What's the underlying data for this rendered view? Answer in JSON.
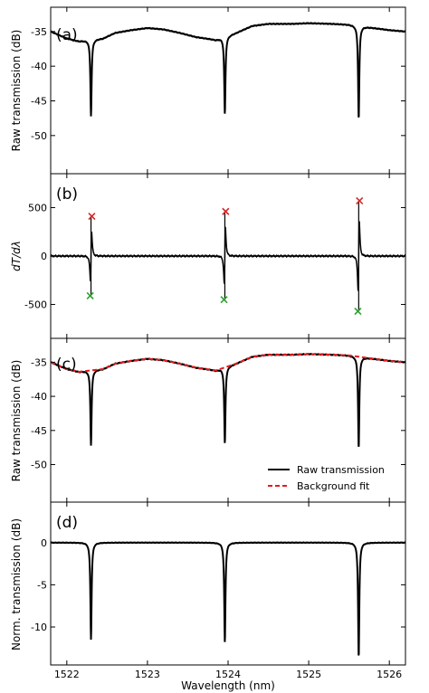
{
  "chart_data": [
    {
      "type": "line",
      "panel_label": "(a)",
      "ylabel": "Raw transmission (dB)",
      "xlim": [
        1521.8,
        1526.2
      ],
      "ylim": [
        -55.5,
        -31.5
      ],
      "yticks": [
        -50,
        -45,
        -40,
        -35
      ],
      "grid": false,
      "legend": "none",
      "series": [
        {
          "color": "#000000",
          "style": "solid",
          "background": [
            [
              1521.8,
              -35.0
            ],
            [
              1522.0,
              -36.0
            ],
            [
              1522.15,
              -36.4
            ],
            [
              1522.45,
              -36.0
            ],
            [
              1522.6,
              -35.2
            ],
            [
              1522.8,
              -34.8
            ],
            [
              1523.0,
              -34.5
            ],
            [
              1523.2,
              -34.7
            ],
            [
              1523.4,
              -35.2
            ],
            [
              1523.6,
              -35.8
            ],
            [
              1523.85,
              -36.2
            ],
            [
              1524.1,
              -35.2
            ],
            [
              1524.3,
              -34.2
            ],
            [
              1524.5,
              -33.9
            ],
            [
              1524.8,
              -33.9
            ],
            [
              1525.0,
              -33.8
            ],
            [
              1525.3,
              -33.9
            ],
            [
              1525.5,
              -34.0
            ],
            [
              1525.75,
              -34.4
            ],
            [
              1526.0,
              -34.8
            ],
            [
              1526.2,
              -35.0
            ]
          ],
          "dips": [
            {
              "x": 1522.3,
              "depth": 11.0,
              "width": 0.009
            },
            {
              "x": 1523.96,
              "depth": 11.2,
              "width": 0.009
            },
            {
              "x": 1525.62,
              "depth": 13.5,
              "width": 0.009
            }
          ]
        }
      ]
    },
    {
      "type": "line",
      "panel_label": "(b)",
      "ylabel": "dT/dλ",
      "xlim": [
        1521.8,
        1526.2
      ],
      "ylim": [
        -850,
        850
      ],
      "yticks": [
        -500,
        0,
        500
      ],
      "grid": false,
      "legend": "none",
      "series": [
        {
          "color": "#000000",
          "style": "solid",
          "resonances": [
            {
              "x": 1522.3,
              "max": 410,
              "min": -410
            },
            {
              "x": 1523.96,
              "max": 460,
              "min": -450
            },
            {
              "x": 1525.62,
              "max": 570,
              "min": -570
            }
          ]
        }
      ],
      "markers": {
        "maxima": {
          "color": "#d62728",
          "symbol": "x",
          "x": [
            1522.31,
            1523.97,
            1525.63
          ],
          "y": [
            410,
            460,
            570
          ]
        },
        "minima": {
          "color": "#2ca02c",
          "symbol": "x",
          "x": [
            1522.29,
            1523.95,
            1525.61
          ],
          "y": [
            -410,
            -450,
            -570
          ]
        }
      }
    },
    {
      "type": "line",
      "panel_label": "(c)",
      "ylabel": "Raw transmission (dB)",
      "xlim": [
        1521.8,
        1526.2
      ],
      "ylim": [
        -55.5,
        -31.5
      ],
      "yticks": [
        -50,
        -45,
        -40,
        -35
      ],
      "grid": false,
      "legend": "lower-right",
      "series": [
        {
          "name": "Raw transmission",
          "color": "#000000",
          "style": "solid",
          "same_as_panel": "(a)"
        },
        {
          "name": "Background fit",
          "color": "#e41a1c",
          "style": "dashed",
          "same_as_panel": "(a)-background"
        }
      ]
    },
    {
      "type": "line",
      "panel_label": "(d)",
      "ylabel": "Norm. transmission (dB)",
      "xlabel": "Wavelength (nm)",
      "xlim": [
        1521.8,
        1526.2
      ],
      "xticks": [
        1522,
        1523,
        1524,
        1525,
        1526
      ],
      "ylim": [
        -14.5,
        4.8
      ],
      "yticks": [
        -10,
        -5,
        0
      ],
      "grid": false,
      "legend": "none",
      "series": [
        {
          "color": "#000000",
          "style": "solid",
          "dips": [
            {
              "x": 1522.3,
              "depth": 11.5,
              "width": 0.009
            },
            {
              "x": 1523.96,
              "depth": 11.9,
              "width": 0.009
            },
            {
              "x": 1525.62,
              "depth": 13.7,
              "width": 0.009
            }
          ]
        }
      ]
    }
  ]
}
